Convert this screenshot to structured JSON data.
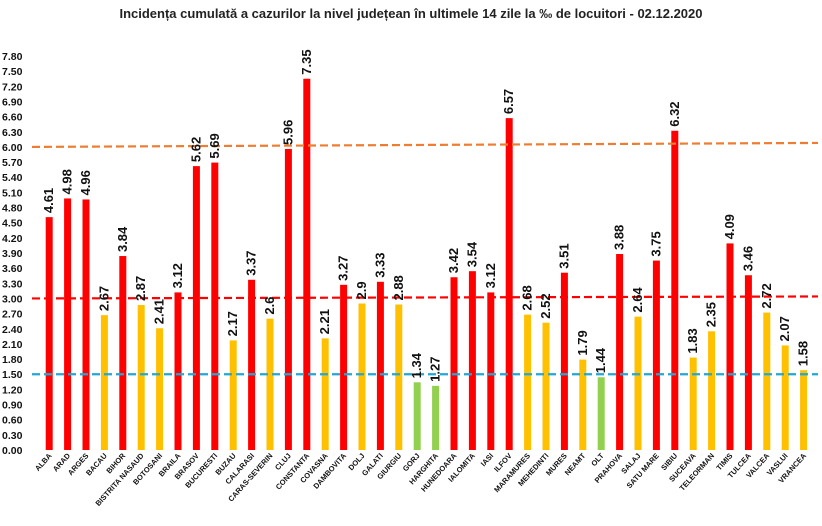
{
  "chart_data": {
    "type": "bar",
    "title": "Incidența cumulată a cazurilor la nivel județean în ultimele 14 zile la ‰ de locuitori - 02.12.2020",
    "xlabel": "",
    "ylabel": "",
    "ylim": [
      0,
      7.8
    ],
    "yticks": [
      "0.00",
      "0.30",
      "0.60",
      "0.90",
      "1.20",
      "1.50",
      "1.80",
      "2.10",
      "2.40",
      "2.70",
      "3.00",
      "3.30",
      "3.60",
      "3.90",
      "4.20",
      "4.50",
      "4.80",
      "5.10",
      "5.40",
      "5.70",
      "6.00",
      "6.30",
      "6.60",
      "6.90",
      "7.20",
      "7.50",
      "7.80"
    ],
    "grid": false,
    "legend": "none",
    "colors": {
      "red": "#ff0000",
      "yellow": "#ffc000",
      "green": "#92d050",
      "orange_line": "#ed7d31",
      "red_line": "#ff0000",
      "blue_line": "#1fa8d8"
    },
    "thresholds": [
      6.0,
      3.0,
      1.5
    ],
    "categories": [
      "ALBA",
      "ARAD",
      "ARGES",
      "BACAU",
      "BIHOR",
      "BISTRITA NASAUD",
      "BOTOSANI",
      "BRAILA",
      "BRASOV",
      "BUCURESTI",
      "BUZAU",
      "CALARASI",
      "CARAS-SEVERIN",
      "CLUJ",
      "CONSTANTA",
      "COVASNA",
      "DAMBOVITA",
      "DOLJ",
      "GALATI",
      "GIURGIU",
      "GORJ",
      "HARGHITA",
      "HUNEDOARA",
      "IALOMITA",
      "IASI",
      "ILFOV",
      "MARAMURES",
      "MEHEDINTI",
      "MURES",
      "NEAMT",
      "OLT",
      "PRAHOVA",
      "SALAJ",
      "SATU MARE",
      "SIBIU",
      "SUCEAVA",
      "TELEORMAN",
      "TIMIS",
      "TULCEA",
      "VALCEA",
      "VASLUI",
      "VRANCEA"
    ],
    "values": [
      4.61,
      4.98,
      4.96,
      2.67,
      3.84,
      2.87,
      2.41,
      3.12,
      5.62,
      5.69,
      2.17,
      3.37,
      2.6,
      5.96,
      7.35,
      2.21,
      3.27,
      2.9,
      3.33,
      2.88,
      1.34,
      1.27,
      3.42,
      3.54,
      3.12,
      6.57,
      2.68,
      2.52,
      3.51,
      1.79,
      1.44,
      3.88,
      2.64,
      3.75,
      6.32,
      1.83,
      2.35,
      4.09,
      3.46,
      2.72,
      2.07,
      1.58
    ],
    "value_labels": [
      "4.61",
      "4.98",
      "4.96",
      "2.67",
      "3.84",
      "2.87",
      "2.41",
      "3.12",
      "5.62",
      "5.69",
      "2.17",
      "3.37",
      "2.6",
      "5.96",
      "7.35",
      "2.21",
      "3.27",
      "2.9",
      "3.33",
      "2.88",
      "1.34",
      "1.27",
      "3.42",
      "3.54",
      "3.12",
      "6.57",
      "2.68",
      "2.52",
      "3.51",
      "1.79",
      "1.44",
      "3.88",
      "2.64",
      "3.75",
      "6.32",
      "1.83",
      "2.35",
      "4.09",
      "3.46",
      "2.72",
      "2.07",
      "1.58"
    ]
  }
}
